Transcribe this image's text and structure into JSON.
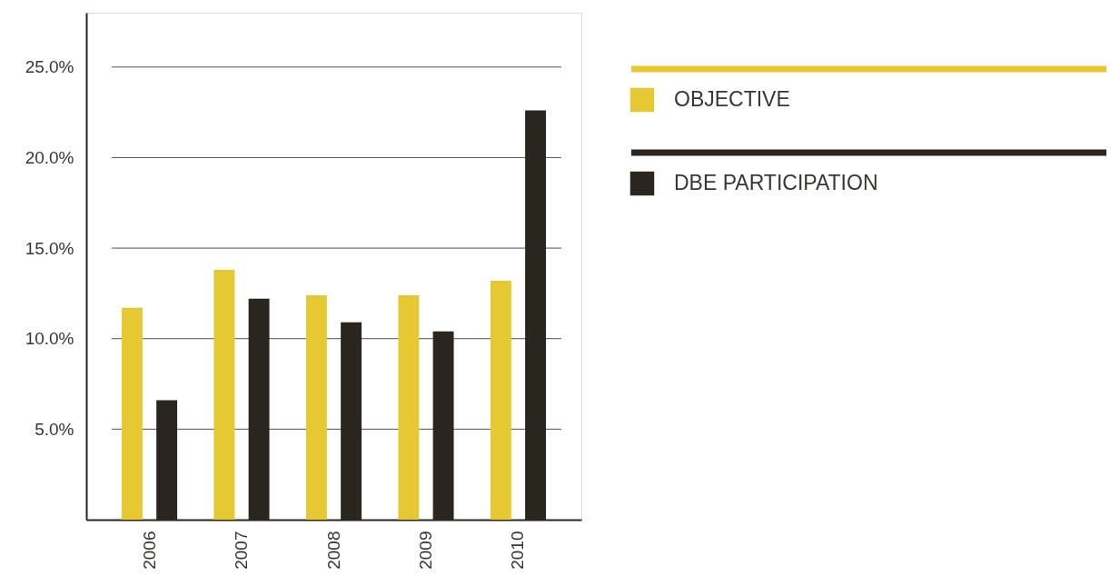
{
  "chart_data": {
    "type": "bar",
    "categories": [
      "2006",
      "2007",
      "2008",
      "2009",
      "2010"
    ],
    "series": [
      {
        "name": "OBJECTIVE",
        "color": "#e6c832",
        "values": [
          11.7,
          13.8,
          12.4,
          12.4,
          13.2
        ]
      },
      {
        "name": "DBE PARTICIPATION",
        "color": "#2a251f",
        "values": [
          6.6,
          12.2,
          10.9,
          10.4,
          22.6
        ]
      }
    ],
    "ylim": [
      0,
      28
    ],
    "yticks": [
      {
        "value": 5,
        "label": "5.0%"
      },
      {
        "value": 10,
        "label": "10.0%"
      },
      {
        "value": 15,
        "label": "15.0%"
      },
      {
        "value": 20,
        "label": "20.0%"
      },
      {
        "value": 25,
        "label": "25.0%"
      }
    ],
    "grid": "y",
    "legend": "right"
  }
}
